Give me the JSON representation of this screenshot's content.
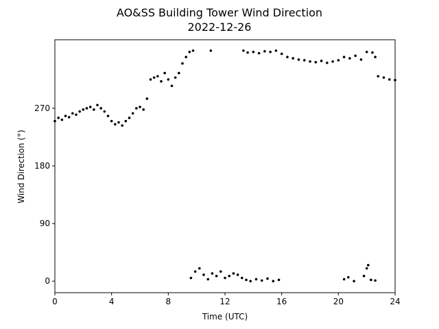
{
  "chart_data": {
    "type": "scatter",
    "title": "AO&SS Building Tower Wind Direction",
    "subtitle": "2022-12-26",
    "xlabel": "Time (UTC)",
    "ylabel": "Wind Direction (°)",
    "color": "#000000",
    "grid": false,
    "xlim": [
      0,
      24
    ],
    "xticks": [
      0,
      4,
      8,
      12,
      16,
      20,
      24
    ],
    "ylim": [
      -18,
      377
    ],
    "yticks": [
      0,
      90,
      180,
      270
    ],
    "x": [
      0,
      0.25,
      0.5,
      0.75,
      1,
      1.25,
      1.5,
      1.75,
      2,
      2.25,
      2.5,
      2.75,
      3,
      3.25,
      3.5,
      3.75,
      4,
      4.25,
      4.5,
      4.75,
      5,
      5.25,
      5.5,
      5.75,
      6,
      6.25,
      6.5,
      6.75,
      7,
      7.25,
      7.5,
      7.75,
      8,
      8.25,
      8.5,
      8.75,
      9,
      9.25,
      9.5,
      9.75,
      11,
      13.3,
      13.6,
      14,
      14.4,
      14.8,
      15.2,
      15.6,
      16,
      16.4,
      16.8,
      17.2,
      17.6,
      18,
      18.4,
      18.8,
      19.2,
      19.6,
      20,
      20.4,
      20.8,
      21.2,
      21.6,
      22,
      22.4,
      22.6,
      22.8,
      23.2,
      23.6,
      24,
      9.6,
      9.9,
      10.2,
      10.5,
      10.8,
      11.1,
      11.4,
      11.7,
      12,
      12.3,
      12.6,
      12.9,
      13.2,
      13.5,
      13.8,
      14.2,
      14.6,
      15,
      15.4,
      15.8,
      20.4,
      20.7,
      21.1,
      21.8,
      22,
      22.1,
      22.3,
      22.6
    ],
    "values": [
      250,
      255,
      252,
      258,
      256,
      262,
      260,
      265,
      268,
      270,
      272,
      268,
      275,
      270,
      265,
      258,
      250,
      245,
      248,
      243,
      250,
      255,
      262,
      270,
      272,
      268,
      285,
      315,
      318,
      320,
      312,
      325,
      315,
      305,
      318,
      325,
      340,
      350,
      358,
      360,
      360,
      360,
      357,
      358,
      356,
      359,
      358,
      360,
      355,
      350,
      348,
      346,
      345,
      343,
      342,
      344,
      341,
      343,
      345,
      350,
      348,
      352,
      346,
      358,
      357,
      350,
      320,
      318,
      315,
      314,
      5,
      15,
      20,
      10,
      3,
      12,
      8,
      15,
      5,
      8,
      12,
      10,
      5,
      2,
      0,
      3,
      1,
      4,
      0,
      2,
      3,
      6,
      0,
      8,
      20,
      25,
      2,
      1
    ]
  }
}
